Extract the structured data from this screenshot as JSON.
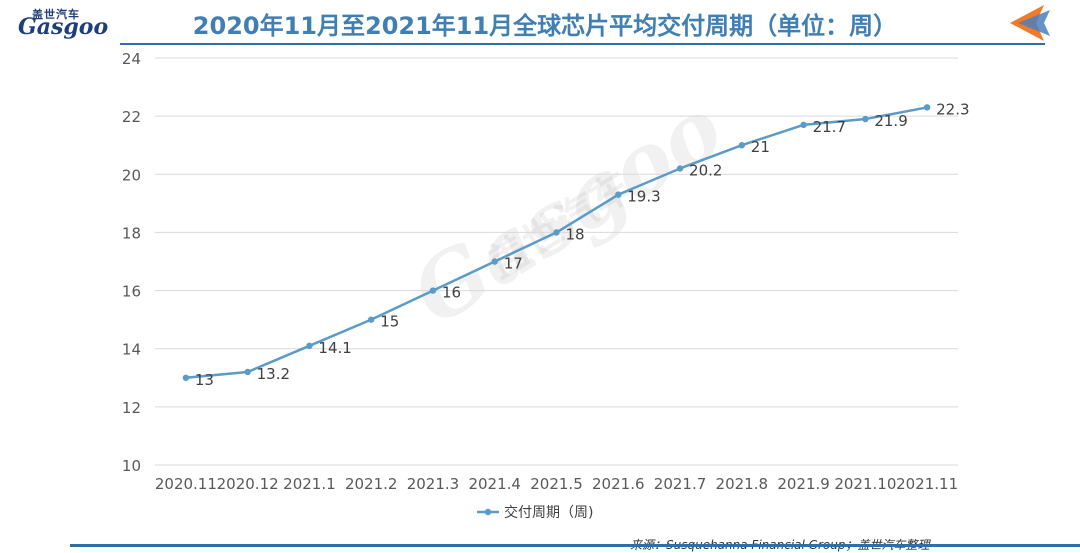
{
  "header": {
    "title": "2020年11月至2021年11月全球芯片平均交付周期（单位：周）",
    "logo_cn": "盖世汽车",
    "logo_en": "Gasgoo"
  },
  "watermark": {
    "en": "Gasgoo",
    "cn": "盖世汽车"
  },
  "source": "来源：Susquehanna Financial Group；盖世汽车整理",
  "colors": {
    "line": "#5b9bc8",
    "title": "#3f7fb4",
    "rule": "#2f6fa5",
    "grid": "#d9d9d9",
    "arrow": "#f07a2a"
  },
  "icons": {
    "nav": "back-arrow-icon"
  },
  "chart_data": {
    "type": "line",
    "categories": [
      "2020.11",
      "2020.12",
      "2021.1",
      "2021.2",
      "2021.3",
      "2021.4",
      "2021.5",
      "2021.6",
      "2021.7",
      "2021.8",
      "2021.9",
      "2021.10",
      "2021.11"
    ],
    "series": [
      {
        "name": "交付周期（周)",
        "values": [
          13,
          13.2,
          14.1,
          15,
          16,
          17,
          18,
          19.3,
          20.2,
          21,
          21.7,
          21.9,
          22.3
        ]
      }
    ],
    "yticks": [
      10,
      12,
      14,
      16,
      18,
      20,
      22,
      24
    ],
    "ylim": [
      10,
      24
    ],
    "grid": true,
    "legend": "bottom",
    "data_labels": true
  }
}
